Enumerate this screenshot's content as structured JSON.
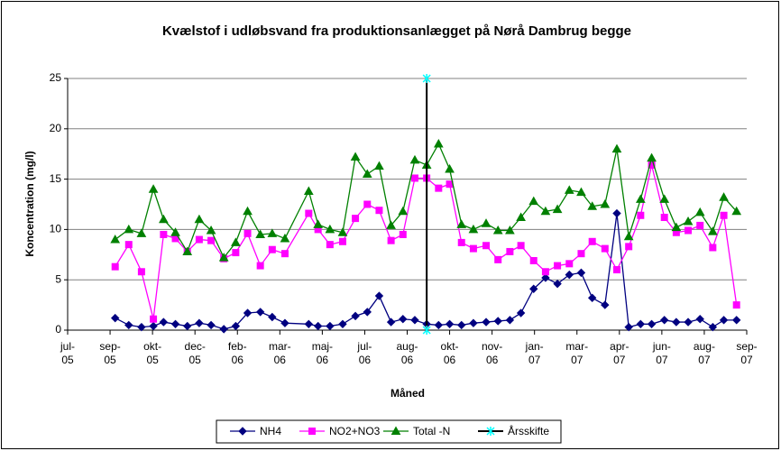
{
  "chart_data": {
    "type": "line",
    "title": "Kvælstof i udløbsvand fra produktionsanlægget på Nørå Dambrug begge",
    "x_label": "Måned",
    "y_label": "Koncentration (mg/l)",
    "xlim": [
      0,
      800
    ],
    "xticks": [
      {
        "value": 0,
        "label": "jul-05"
      },
      {
        "value": 50,
        "label": "sep-05"
      },
      {
        "value": 100,
        "label": "okt-05"
      },
      {
        "value": 150,
        "label": "dec-05"
      },
      {
        "value": 200,
        "label": "feb-06"
      },
      {
        "value": 250,
        "label": "mar-06"
      },
      {
        "value": 300,
        "label": "maj-06"
      },
      {
        "value": 350,
        "label": "jul-06"
      },
      {
        "value": 400,
        "label": "aug-06"
      },
      {
        "value": 450,
        "label": "okt-06"
      },
      {
        "value": 500,
        "label": "nov-06"
      },
      {
        "value": 550,
        "label": "jan-07"
      },
      {
        "value": 600,
        "label": "mar-07"
      },
      {
        "value": 650,
        "label": "apr-07"
      },
      {
        "value": 700,
        "label": "jun-07"
      },
      {
        "value": 750,
        "label": "aug-07"
      },
      {
        "value": 800,
        "label": "sep-07"
      }
    ],
    "ylim": [
      0,
      25
    ],
    "yticks": [
      0,
      5,
      10,
      15,
      20,
      25
    ],
    "grid": true,
    "legend": "bottom",
    "series": [
      {
        "name": "NH4",
        "color": "#000080",
        "marker": "diamond",
        "x": [
          56,
          72,
          87,
          101,
          113,
          127,
          141,
          155,
          169,
          184,
          198,
          212,
          227,
          241,
          256,
          284,
          295,
          309,
          324,
          339,
          353,
          367,
          381,
          395,
          409,
          423,
          437,
          450,
          464,
          478,
          493,
          507,
          521,
          534,
          549,
          563,
          577,
          591,
          605,
          618,
          633,
          647,
          661,
          675,
          688,
          703,
          717,
          731,
          745,
          760,
          773,
          788
        ],
        "values": [
          1.2,
          0.5,
          0.3,
          0.4,
          0.8,
          0.6,
          0.4,
          0.7,
          0.5,
          0.1,
          0.4,
          1.7,
          1.8,
          1.3,
          0.7,
          0.6,
          0.4,
          0.4,
          0.6,
          1.4,
          1.8,
          3.4,
          0.8,
          1.1,
          1.0,
          0.6,
          0.5,
          0.6,
          0.5,
          0.7,
          0.8,
          0.9,
          1.0,
          1.7,
          4.1,
          5.2,
          4.6,
          5.5,
          5.7,
          3.2,
          2.5,
          11.6,
          0.3,
          0.6,
          0.6,
          1.0,
          0.8,
          0.8,
          1.1,
          0.3,
          1.0,
          1.0
        ]
      },
      {
        "name": "NO2+NO3",
        "color": "#ff00ff",
        "marker": "square",
        "x": [
          56,
          72,
          87,
          101,
          113,
          127,
          141,
          155,
          169,
          184,
          198,
          212,
          227,
          241,
          256,
          284,
          295,
          309,
          324,
          339,
          353,
          367,
          381,
          395,
          409,
          423,
          437,
          450,
          464,
          478,
          493,
          507,
          521,
          534,
          549,
          563,
          577,
          591,
          605,
          618,
          633,
          647,
          661,
          675,
          688,
          703,
          717,
          731,
          745,
          760,
          773,
          788
        ],
        "values": [
          6.3,
          8.5,
          5.8,
          1.1,
          9.5,
          9.1,
          7.8,
          9.0,
          8.9,
          7.1,
          7.7,
          9.6,
          6.4,
          8.0,
          7.6,
          11.6,
          10.0,
          8.5,
          8.8,
          11.1,
          12.5,
          11.9,
          8.9,
          9.5,
          15.1,
          15.1,
          14.1,
          14.5,
          8.7,
          8.1,
          8.4,
          7.0,
          7.8,
          8.4,
          6.9,
          5.8,
          6.4,
          6.6,
          7.6,
          8.8,
          8.1,
          6.0,
          8.3,
          11.4,
          16.4,
          11.2,
          9.7,
          9.9,
          10.4,
          8.2,
          11.4,
          2.5
        ]
      },
      {
        "name": "Total -N",
        "color": "#008000",
        "marker": "triangle",
        "x": [
          56,
          72,
          87,
          101,
          113,
          127,
          141,
          155,
          169,
          184,
          198,
          212,
          227,
          241,
          256,
          284,
          295,
          309,
          324,
          339,
          353,
          367,
          381,
          395,
          409,
          423,
          437,
          450,
          464,
          478,
          493,
          507,
          521,
          534,
          549,
          563,
          577,
          591,
          605,
          618,
          633,
          647,
          661,
          675,
          688,
          703,
          717,
          731,
          745,
          760,
          773,
          788
        ],
        "values": [
          9.0,
          10.0,
          9.6,
          14.0,
          11.0,
          9.7,
          7.8,
          11.0,
          9.9,
          7.2,
          8.7,
          11.8,
          9.5,
          9.6,
          9.1,
          13.8,
          10.5,
          10.0,
          9.7,
          17.2,
          15.5,
          16.3,
          10.4,
          11.8,
          16.9,
          16.4,
          18.5,
          16.0,
          10.5,
          10.0,
          10.6,
          9.9,
          9.9,
          11.2,
          12.8,
          11.8,
          12.0,
          13.9,
          13.7,
          12.3,
          12.5,
          18.0,
          9.3,
          13.0,
          17.1,
          13.0,
          10.2,
          10.8,
          11.7,
          9.8,
          13.2,
          11.8
        ]
      },
      {
        "name": "Årsskifte",
        "color": "#000000",
        "marker": "star",
        "marker_color": "#00ffff",
        "x": [
          423,
          423
        ],
        "values": [
          0,
          25
        ]
      }
    ]
  }
}
